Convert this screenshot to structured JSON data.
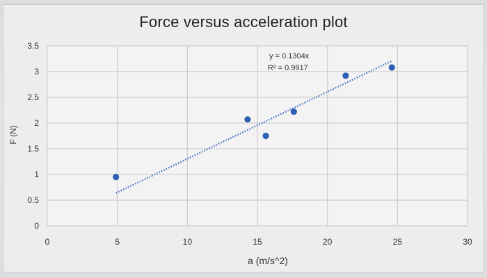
{
  "chart_data": {
    "type": "scatter",
    "title": "Force versus acceleration plot",
    "xlabel": "a (m/s^2)",
    "ylabel": "F (N)",
    "xlim": [
      0,
      30
    ],
    "ylim": [
      0,
      3.5
    ],
    "x_ticks": [
      "0",
      "5",
      "10",
      "15",
      "20",
      "25",
      "30"
    ],
    "y_ticks": [
      "0",
      "0.5",
      "1",
      "1.5",
      "2",
      "2.5",
      "3",
      "3.5"
    ],
    "grid": true,
    "legend": "none",
    "series": [
      {
        "points": [
          {
            "x": 4.9,
            "y": 0.95
          },
          {
            "x": 14.3,
            "y": 2.07
          },
          {
            "x": 15.6,
            "y": 1.75
          },
          {
            "x": 17.6,
            "y": 2.22
          },
          {
            "x": 21.3,
            "y": 2.92
          },
          {
            "x": 24.6,
            "y": 3.08
          }
        ],
        "color": "#2f5fb3"
      }
    ],
    "trendline": {
      "equation": "y = 0.1304x",
      "r_squared": "R² = 0.9917",
      "slope": 0.1304,
      "x_range": [
        4.9,
        24.6
      ],
      "style": "dotted",
      "color": "#4472c4"
    }
  }
}
